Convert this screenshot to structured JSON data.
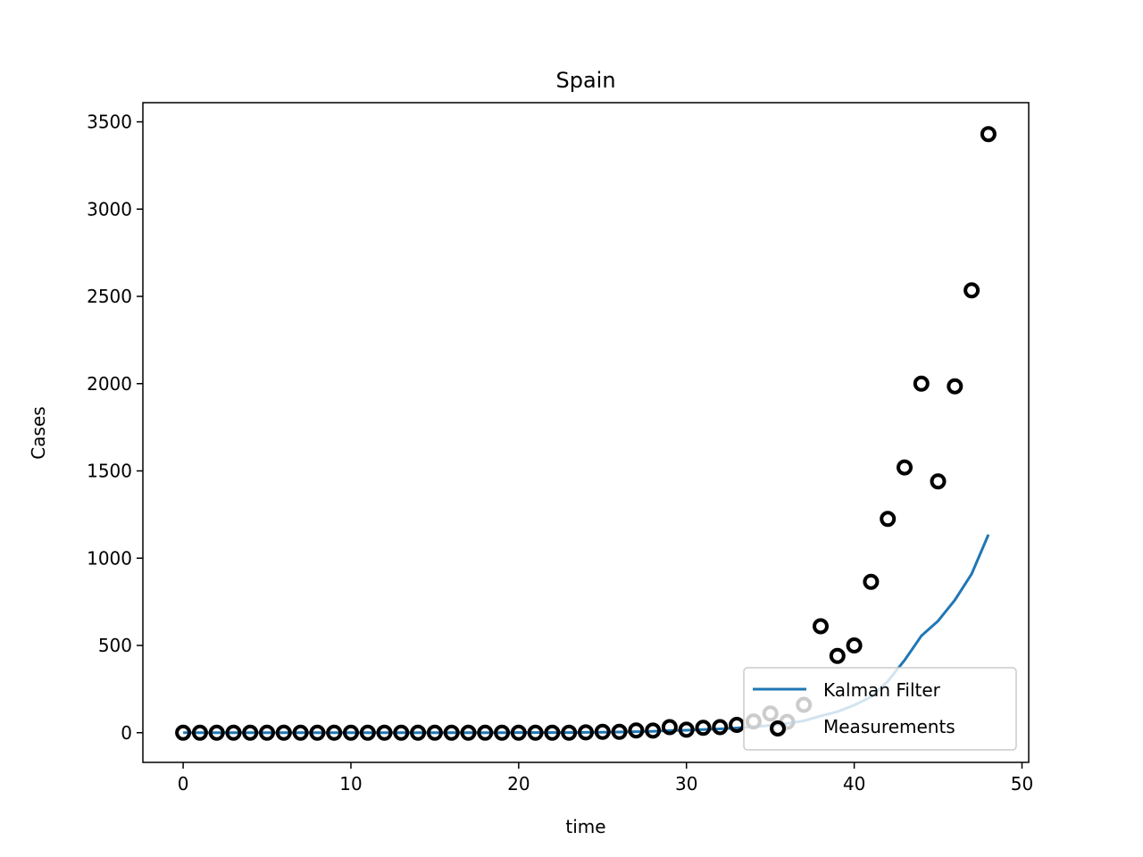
{
  "chart_data": {
    "type": "line",
    "title": "Spain",
    "xlabel": "time",
    "ylabel": "Cases",
    "xlim": [
      -2.4,
      50.4
    ],
    "ylim": [
      -170,
      3610
    ],
    "xticks": [
      0,
      10,
      20,
      30,
      40,
      50
    ],
    "yticks": [
      0,
      500,
      1000,
      1500,
      2000,
      2500,
      3000,
      3500
    ],
    "legend": {
      "position": "lower-right",
      "entries": [
        "Kalman Filter",
        "Measurements"
      ]
    },
    "grid": false,
    "series": [
      {
        "name": "Kalman Filter",
        "type": "line",
        "color": "#1f77b4",
        "x": [
          0,
          1,
          2,
          3,
          4,
          5,
          6,
          7,
          8,
          9,
          10,
          11,
          12,
          13,
          14,
          15,
          16,
          17,
          18,
          19,
          20,
          21,
          22,
          23,
          24,
          25,
          26,
          27,
          28,
          29,
          30,
          31,
          32,
          33,
          34,
          35,
          36,
          37,
          38,
          39,
          40,
          41,
          42,
          43,
          44,
          45,
          46,
          47,
          48
        ],
        "y": [
          0,
          0,
          0,
          0,
          0,
          0,
          0,
          0,
          0,
          0,
          0,
          0,
          0,
          0,
          0,
          0,
          0,
          0,
          0,
          0,
          1,
          1,
          1,
          1,
          2,
          3,
          4,
          6,
          8,
          12,
          14,
          18,
          22,
          27,
          34,
          42,
          53,
          68,
          96,
          120,
          158,
          205,
          295,
          415,
          555,
          640,
          760,
          910,
          1135
        ]
      },
      {
        "name": "Measurements",
        "type": "scatter",
        "color": "#000000",
        "marker": "open-circle",
        "x": [
          0,
          1,
          2,
          3,
          4,
          5,
          6,
          7,
          8,
          9,
          10,
          11,
          12,
          13,
          14,
          15,
          16,
          17,
          18,
          19,
          20,
          21,
          22,
          23,
          24,
          25,
          26,
          27,
          28,
          29,
          30,
          31,
          32,
          33,
          34,
          35,
          35.5,
          36,
          37,
          38,
          39,
          40,
          41,
          42,
          43,
          44,
          45,
          46,
          47,
          48
        ],
        "y": [
          0,
          0,
          0,
          0,
          0,
          0,
          0,
          0,
          0,
          0,
          0,
          0,
          0,
          0,
          0,
          0,
          0,
          0,
          0,
          0,
          0,
          0,
          0,
          0,
          2,
          5,
          5,
          13,
          12,
          32,
          17,
          28,
          32,
          45,
          65,
          110,
          25,
          62,
          160,
          610,
          440,
          500,
          865,
          1225,
          1520,
          2000,
          1440,
          1985,
          2535,
          3430
        ]
      }
    ]
  }
}
